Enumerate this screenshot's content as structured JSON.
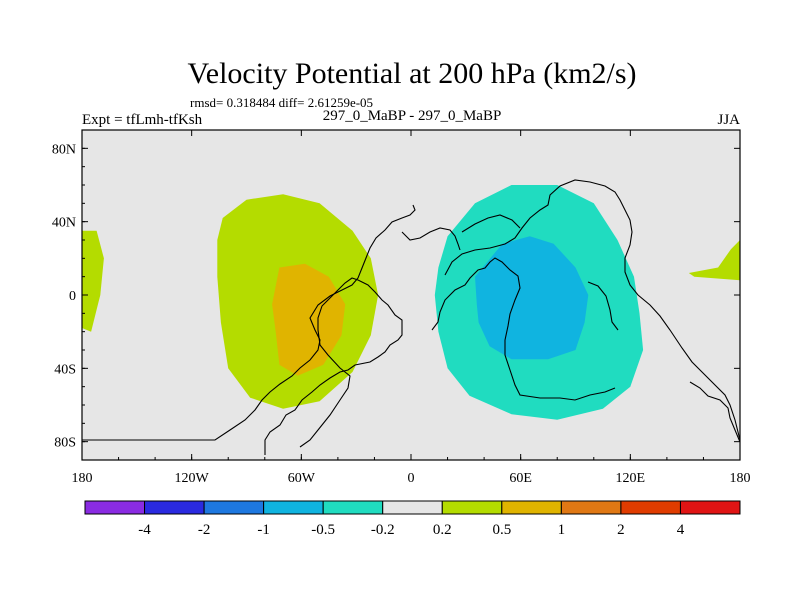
{
  "chart_data": {
    "type": "contour-map",
    "title": "Velocity Potential at 200 hPa (km2/s)",
    "subtitle": "rmsd= 0.318484 diff= 2.61259e-05",
    "left_label": "Expt = tfLmh-tfKsh",
    "center_label": "297_0_MaBP - 297_0_MaBP",
    "right_label": "JJA",
    "x_ticks": [
      {
        "value": -180,
        "label": "180"
      },
      {
        "value": -120,
        "label": "120W"
      },
      {
        "value": -60,
        "label": "60W"
      },
      {
        "value": 0,
        "label": "0"
      },
      {
        "value": 60,
        "label": "60E"
      },
      {
        "value": 120,
        "label": "120E"
      },
      {
        "value": 180,
        "label": "180"
      }
    ],
    "y_ticks": [
      {
        "value": 80,
        "label": "80N"
      },
      {
        "value": 40,
        "label": "40N"
      },
      {
        "value": 0,
        "label": "0"
      },
      {
        "value": -40,
        "label": "40S"
      },
      {
        "value": -80,
        "label": "80S"
      }
    ],
    "xlim": [
      -180,
      180
    ],
    "ylim": [
      -90,
      90
    ],
    "colorbar": {
      "levels": [
        "-4",
        "-2",
        "-1",
        "-0.5",
        "-0.2",
        "0.2",
        "0.5",
        "1",
        "2",
        "4"
      ],
      "colors": [
        "#8a2be2",
        "#2a2ae0",
        "#1e78e0",
        "#10b4e0",
        "#20dcc0",
        "#e6e6e6",
        "#b4dc00",
        "#e0b400",
        "#e07814",
        "#e03c00",
        "#e01414"
      ]
    },
    "fields": [
      {
        "name": "positive-anomaly-0.2",
        "value": "0.2 to 0.5",
        "color": "#b4dc00",
        "polygon": [
          [
            -103,
            42
          ],
          [
            -90,
            52
          ],
          [
            -70,
            55
          ],
          [
            -50,
            50
          ],
          [
            -32,
            35
          ],
          [
            -22,
            20
          ],
          [
            -18,
            0
          ],
          [
            -22,
            -22
          ],
          [
            -32,
            -42
          ],
          [
            -50,
            -58
          ],
          [
            -70,
            -62
          ],
          [
            -88,
            -56
          ],
          [
            -100,
            -40
          ],
          [
            -104,
            -15
          ],
          [
            -106,
            10
          ],
          [
            -106,
            30
          ]
        ]
      },
      {
        "name": "positive-anomaly-0.5",
        "value": "0.5 to 1",
        "color": "#e0b400",
        "polygon": [
          [
            -72,
            15
          ],
          [
            -58,
            17
          ],
          [
            -45,
            10
          ],
          [
            -36,
            -5
          ],
          [
            -38,
            -22
          ],
          [
            -48,
            -38
          ],
          [
            -62,
            -44
          ],
          [
            -72,
            -38
          ],
          [
            -74,
            -20
          ],
          [
            -76,
            -5
          ]
        ]
      },
      {
        "name": "positive-anomaly-west-edge",
        "value": "0.2 to 0.5",
        "color": "#b4dc00",
        "polygon": [
          [
            -180,
            35
          ],
          [
            -172,
            35
          ],
          [
            -168,
            20
          ],
          [
            -170,
            0
          ],
          [
            -175,
            -20
          ],
          [
            -180,
            -18
          ]
        ]
      },
      {
        "name": "positive-anomaly-east-edge",
        "value": "0.2 to 0.5",
        "color": "#b4dc00",
        "polygon": [
          [
            180,
            30
          ],
          [
            175,
            25
          ],
          [
            168,
            15
          ],
          [
            152,
            12
          ],
          [
            155,
            10
          ],
          [
            180,
            8
          ]
        ]
      },
      {
        "name": "negative-anomaly-0.2",
        "value": "-0.5 to -0.2",
        "color": "#20dcc0",
        "polygon": [
          [
            20,
            32
          ],
          [
            35,
            50
          ],
          [
            55,
            60
          ],
          [
            80,
            60
          ],
          [
            100,
            50
          ],
          [
            113,
            30
          ],
          [
            122,
            10
          ],
          [
            125,
            -10
          ],
          [
            127,
            -30
          ],
          [
            120,
            -50
          ],
          [
            105,
            -62
          ],
          [
            80,
            -68
          ],
          [
            55,
            -65
          ],
          [
            32,
            -55
          ],
          [
            20,
            -40
          ],
          [
            15,
            -20
          ],
          [
            13,
            0
          ],
          [
            15,
            15
          ]
        ]
      },
      {
        "name": "negative-anomaly-0.5",
        "value": "-1 to -0.5",
        "color": "#10b4e0",
        "polygon": [
          [
            35,
            10
          ],
          [
            50,
            28
          ],
          [
            65,
            32
          ],
          [
            78,
            28
          ],
          [
            90,
            15
          ],
          [
            97,
            0
          ],
          [
            95,
            -15
          ],
          [
            90,
            -30
          ],
          [
            75,
            -35
          ],
          [
            55,
            -35
          ],
          [
            43,
            -28
          ],
          [
            37,
            -15
          ],
          [
            36,
            -5
          ]
        ]
      }
    ]
  }
}
